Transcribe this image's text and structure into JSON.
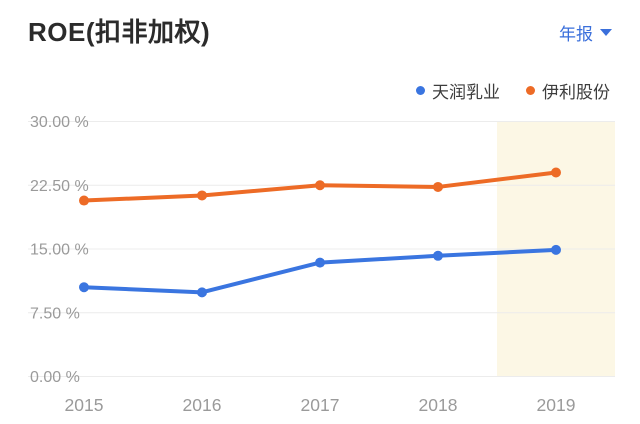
{
  "header": {
    "title": "ROE(扣非加权)",
    "period_selector_label": "年报"
  },
  "colors": {
    "accent_blue": "#3a6fdb",
    "series_blue": "#3a75e0",
    "series_orange": "#ed6b26",
    "gridline": "#ececec",
    "axis_text": "#9a9a9a",
    "title_text": "#2b2b2b",
    "highlight_band": "#fcf7e5"
  },
  "chart_data": {
    "type": "line",
    "title": "ROE(扣非加权)",
    "x_categories": [
      "2015",
      "2016",
      "2017",
      "2018",
      "2019"
    ],
    "series": [
      {
        "name": "天润乳业",
        "color": "#3a75e0",
        "values": [
          10.5,
          9.9,
          13.4,
          14.2,
          14.9
        ]
      },
      {
        "name": "伊利股份",
        "color": "#ed6b26",
        "values": [
          20.7,
          21.3,
          22.5,
          22.3,
          24.0
        ]
      }
    ],
    "unit": "%",
    "ylim": [
      0,
      30
    ],
    "yticks": [
      {
        "value": 30,
        "label": "30.00 %"
      },
      {
        "value": 22.5,
        "label": "22.50 %"
      },
      {
        "value": 15,
        "label": "15.00 %"
      },
      {
        "value": 7.5,
        "label": "7.50 %"
      },
      {
        "value": 0,
        "label": "0.00 %"
      }
    ],
    "grid": true,
    "legend_position": "top-right",
    "highlight_band": {
      "category": "2019",
      "color": "#fcf7e5"
    }
  }
}
